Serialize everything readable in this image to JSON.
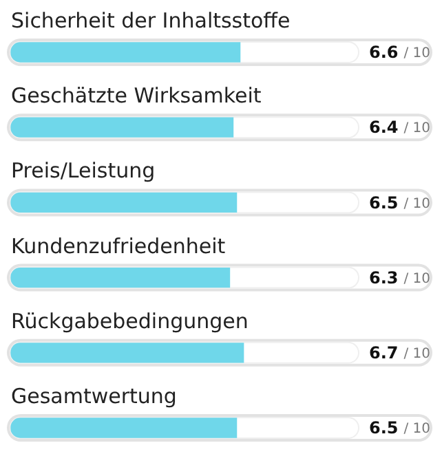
{
  "chart_data": {
    "type": "bar",
    "orientation": "horizontal",
    "categories": [
      "Sicherheit der Inhaltsstoffe",
      "Geschätzte Wirksamkeit",
      "Preis/Leistung",
      "Kundenzufriedenheit",
      "Rückgabebedingungen",
      "Gesamtwertung"
    ],
    "values": [
      6.6,
      6.4,
      6.5,
      6.3,
      6.7,
      6.5
    ],
    "data_labels": true,
    "annotations": [
      "/ 10",
      "/ 10",
      "/ 10",
      "/ 10",
      "/ 10",
      "/ 10"
    ],
    "color": "#6fd7ea",
    "xlim": [
      0,
      10
    ],
    "tick_labels": false,
    "grid": false,
    "legend": false
  }
}
